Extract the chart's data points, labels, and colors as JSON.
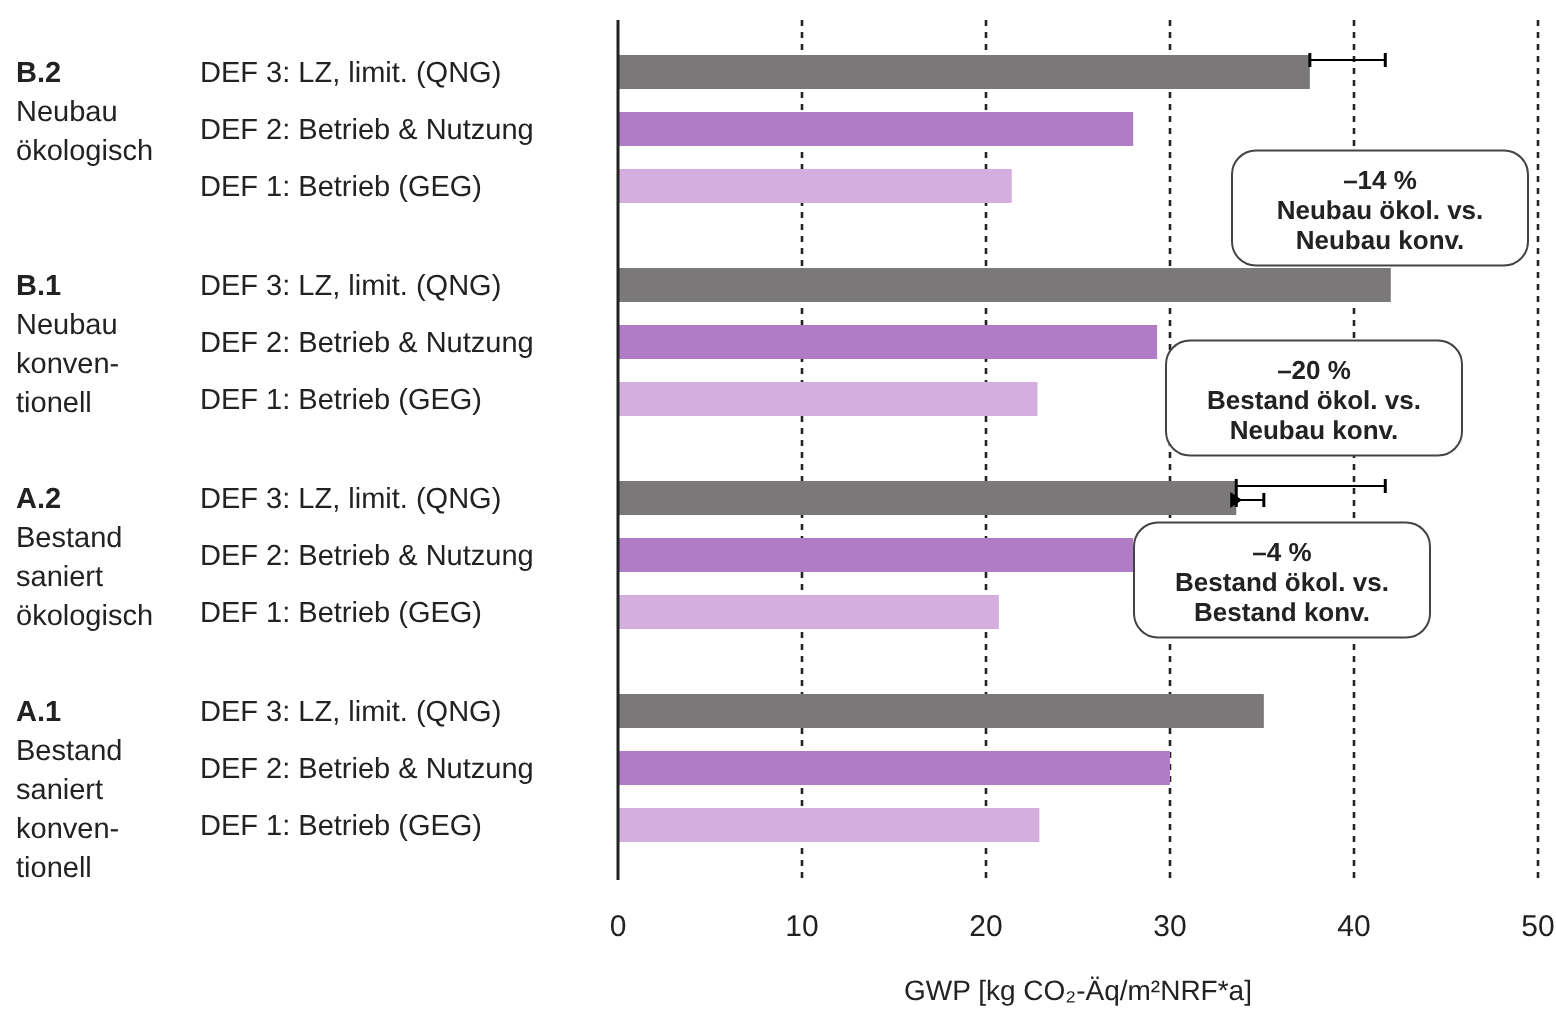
{
  "chart_data": {
    "type": "bar",
    "orientation": "horizontal",
    "xlabel": "GWP [kg CO₂-Äq/m²NRF*a]",
    "categories": [
      "DEF 3: LZ, limit. (QNG)",
      "DEF 2: Betrieb & Nutzung",
      "DEF 1: Betrieb (GEG)",
      "DEF 3: LZ, limit. (QNG)",
      "DEF 2: Betrieb & Nutzung",
      "DEF 1: Betrieb (GEG)",
      "DEF 3: LZ, limit. (QNG)",
      "DEF 2: Betrieb & Nutzung",
      "DEF 1: Betrieb (GEG)",
      "DEF 3: LZ, limit. (QNG)",
      "DEF 2: Betrieb & Nutzung",
      "DEF 1: Betrieb (GEG)"
    ],
    "series": [
      {
        "values": [
          37.6,
          28.0,
          21.4,
          42.0,
          29.3,
          22.8,
          33.6,
          28.0,
          20.7,
          35.1,
          30.0,
          22.9
        ],
        "colors": [
          "#7a7878",
          "#b07cc6",
          "#d4aede",
          "#7a7878",
          "#b07cc6",
          "#d4aede",
          "#7a7878",
          "#b07cc6",
          "#d4aede",
          "#7a7878",
          "#b07cc6",
          "#d4aede"
        ],
        "errors": [
          [
            37.6,
            41.7
          ],
          null,
          null,
          null,
          null,
          null,
          [
            33.6,
            41.7
          ],
          null,
          null,
          null,
          null,
          null
        ]
      },
      {
        "type": "scatter",
        "marker": "triangle",
        "color": "#000000",
        "values": [
          null,
          null,
          null,
          null,
          null,
          null,
          33.6,
          null,
          null,
          null,
          null,
          null
        ],
        "errors": [
          null,
          null,
          null,
          null,
          null,
          null,
          [
            33.6,
            35.1
          ],
          null,
          null,
          null,
          null,
          null
        ]
      }
    ],
    "xlim": [
      0,
      50
    ],
    "xticks": [
      0,
      10,
      20,
      30,
      40,
      50
    ],
    "grid": "x",
    "annotations": [
      "B.2\nNeubau\nökologisch",
      "B.1\nNeubau\nkonven-\ntionell",
      "A.2\nBestand\nsaniert\nökologisch",
      "A.1\nBestand\nsaniert\nkonven-\ntionell",
      "–14 %\nNeubau ökol. vs.\nNeubau konv.",
      "–20 %\nBestand ökol. vs.\nNeubau konv.",
      "–4 %\nBestand ökol. vs.\nBestand konv."
    ]
  }
}
